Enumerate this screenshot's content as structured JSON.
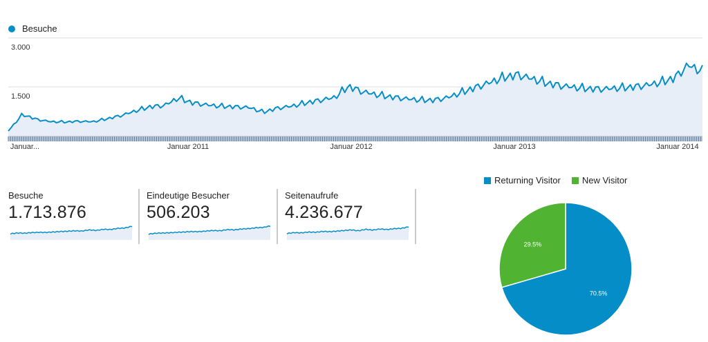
{
  "colors": {
    "accent": "#058dc7",
    "new_visitor": "#50b432",
    "area_fill": "#e7eef8",
    "grid": "#dddddd"
  },
  "main_legend": {
    "label": "Besuche"
  },
  "chart_data": [
    {
      "type": "area",
      "series": [
        {
          "name": "Besuche",
          "x": [
            "2010-01",
            "2010-02",
            "2010-03",
            "2010-04",
            "2010-05",
            "2010-06",
            "2010-07",
            "2010-08",
            "2010-09",
            "2010-10",
            "2010-11",
            "2010-12",
            "2011-01",
            "2011-02",
            "2011-03",
            "2011-04",
            "2011-05",
            "2011-06",
            "2011-07",
            "2011-08",
            "2011-09",
            "2011-10",
            "2011-11",
            "2011-12",
            "2012-01",
            "2012-02",
            "2012-03",
            "2012-04",
            "2012-05",
            "2012-06",
            "2012-07",
            "2012-08",
            "2012-09",
            "2012-10",
            "2012-11",
            "2012-12",
            "2013-01",
            "2013-02",
            "2013-03",
            "2013-04",
            "2013-05",
            "2013-06",
            "2013-07",
            "2013-08",
            "2013-09",
            "2013-10",
            "2013-11",
            "2013-12",
            "2014-01",
            "2014-02"
          ],
          "values": [
            150,
            650,
            500,
            430,
            420,
            440,
            430,
            520,
            620,
            760,
            880,
            920,
            1150,
            1000,
            940,
            900,
            880,
            860,
            720,
            840,
            900,
            1000,
            1080,
            1160,
            1500,
            1340,
            1250,
            1180,
            1130,
            1090,
            1080,
            1160,
            1320,
            1470,
            1620,
            1780,
            1850,
            1730,
            1600,
            1520,
            1470,
            1430,
            1420,
            1450,
            1480,
            1530,
            1620,
            1750,
            2150,
            1950
          ]
        }
      ],
      "ylim": [
        0,
        3000
      ],
      "yticks": [
        "3.000",
        "1.500"
      ],
      "xtick_labels": [
        "Januar...",
        "Januar 2011",
        "Januar 2012",
        "Januar 2013",
        "Januar 2014"
      ],
      "grid": true,
      "legend": "top-left"
    },
    {
      "type": "pie",
      "legend": "top",
      "slices": [
        {
          "name": "Returning Visitor",
          "value": 70.5,
          "label": "70.5%"
        },
        {
          "name": "New Visitor",
          "value": 29.5,
          "label": "29.5%"
        }
      ]
    }
  ],
  "metrics": [
    {
      "label": "Besuche",
      "value": "1.713.876",
      "spark": [
        40,
        46,
        44,
        48,
        50,
        49,
        52,
        55,
        57,
        60,
        58,
        66,
        62,
        70,
        68,
        76,
        78,
        90
      ]
    },
    {
      "label": "Eindeutige Besucher",
      "value": "506.203",
      "spark": [
        38,
        44,
        45,
        47,
        50,
        52,
        55,
        54,
        58,
        62,
        60,
        68,
        66,
        72,
        74,
        80,
        82,
        92
      ]
    },
    {
      "label": "Seitenaufrufe",
      "value": "4.236.677",
      "spark": [
        42,
        48,
        46,
        52,
        50,
        56,
        54,
        58,
        62,
        66,
        60,
        70,
        64,
        72,
        68,
        74,
        76,
        86
      ]
    }
  ]
}
